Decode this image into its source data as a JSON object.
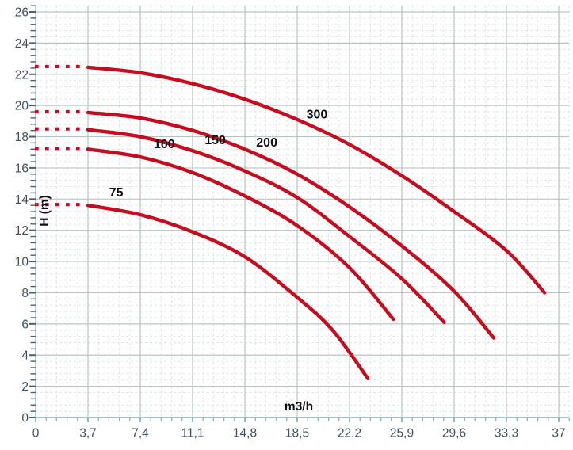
{
  "chart_data": {
    "type": "line",
    "title": "",
    "xlabel": "m3/h",
    "ylabel": "H (m)",
    "xlim": [
      0,
      37
    ],
    "ylim": [
      0,
      26
    ],
    "grid": true,
    "legend": "inline-curve-labels",
    "x_tick_values": [
      0,
      3.7,
      7.4,
      11.1,
      14.8,
      18.5,
      22.2,
      25.9,
      29.6,
      33.3,
      37
    ],
    "x_tick_labels": [
      "0",
      "3,7",
      "7,4",
      "11,1",
      "14,8",
      "18,5",
      "22,2",
      "25,9",
      "29,6",
      "33,3",
      "37"
    ],
    "y_tick_values": [
      0,
      2,
      4,
      6,
      8,
      10,
      12,
      14,
      16,
      18,
      20,
      22,
      24,
      26
    ],
    "y_tick_labels": [
      "0",
      "2",
      "4",
      "6",
      "8",
      "10",
      "12",
      "14",
      "16",
      "18",
      "20",
      "22",
      "24",
      "26"
    ],
    "x_minor_step": 0.74,
    "y_minor_step": 0.4,
    "series": [
      {
        "name": "75",
        "label_x": 5.7,
        "label_y": 14.4,
        "dotted_until": 3.7,
        "points": [
          [
            0,
            13.65
          ],
          [
            3.7,
            13.6
          ],
          [
            7.4,
            13.0
          ],
          [
            11.1,
            11.9
          ],
          [
            14.8,
            10.3
          ],
          [
            18.5,
            7.7
          ],
          [
            21.0,
            5.6
          ],
          [
            23.5,
            2.5
          ]
        ]
      },
      {
        "name": "100",
        "label_x": 9.1,
        "label_y": 17.5,
        "dotted_until": 3.7,
        "points": [
          [
            0,
            17.25
          ],
          [
            3.7,
            17.2
          ],
          [
            7.4,
            16.7
          ],
          [
            11.1,
            15.7
          ],
          [
            14.8,
            14.2
          ],
          [
            18.5,
            12.3
          ],
          [
            22.2,
            9.6
          ],
          [
            25.3,
            6.3
          ]
        ]
      },
      {
        "name": "150",
        "label_x": 12.7,
        "label_y": 17.75,
        "dotted_until": 3.7,
        "points": [
          [
            0,
            18.5
          ],
          [
            3.7,
            18.45
          ],
          [
            7.4,
            18.0
          ],
          [
            11.1,
            17.1
          ],
          [
            14.8,
            15.8
          ],
          [
            18.5,
            14.1
          ],
          [
            22.2,
            11.6
          ],
          [
            25.9,
            8.9
          ],
          [
            28.9,
            6.1
          ]
        ]
      },
      {
        "name": "200",
        "label_x": 16.35,
        "label_y": 17.6,
        "dotted_until": 3.7,
        "points": [
          [
            0,
            19.6
          ],
          [
            3.7,
            19.55
          ],
          [
            7.4,
            19.2
          ],
          [
            11.1,
            18.4
          ],
          [
            14.8,
            17.2
          ],
          [
            18.5,
            15.6
          ],
          [
            22.2,
            13.5
          ],
          [
            25.9,
            11.0
          ],
          [
            29.6,
            8.1
          ],
          [
            32.4,
            5.1
          ]
        ]
      },
      {
        "name": "300",
        "label_x": 19.9,
        "label_y": 19.4,
        "dotted_until": 3.7,
        "points": [
          [
            0,
            22.5
          ],
          [
            3.7,
            22.45
          ],
          [
            7.4,
            22.1
          ],
          [
            11.1,
            21.4
          ],
          [
            14.8,
            20.4
          ],
          [
            18.5,
            19.1
          ],
          [
            22.2,
            17.5
          ],
          [
            25.9,
            15.5
          ],
          [
            29.6,
            13.2
          ],
          [
            33.3,
            10.7
          ],
          [
            36.0,
            8.0
          ]
        ]
      }
    ],
    "colors": {
      "curve": "#c60d1f",
      "curve_label_text": "#0e0e16",
      "axis_tick_text": "#3e5063",
      "axis_title_text": "#0e0e16",
      "grid_major": "#b7c6c3",
      "grid_minor": "#dde6e3",
      "axis_line": "#a9c2c8",
      "tick_mark_y": "#525e62",
      "tick_mark_x": "#93b4c0",
      "background": "#ffffff"
    }
  }
}
